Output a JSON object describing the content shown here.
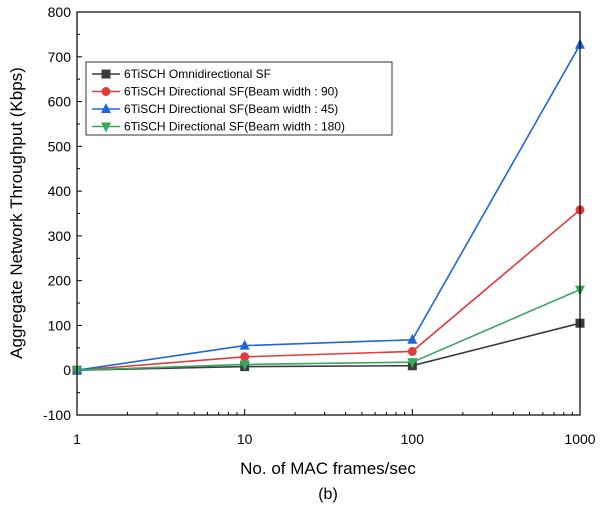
{
  "chart_data": {
    "type": "line",
    "title": "",
    "xlabel": "No. of MAC frames/sec",
    "ylabel": "Aggregate Network Throughput (Kbps)",
    "caption": "(b)",
    "x_scale": "log",
    "x": [
      1,
      10,
      100,
      1000
    ],
    "x_tick_labels": [
      "1",
      "10",
      "100",
      "1000"
    ],
    "ylim": [
      -100,
      800
    ],
    "y_ticks": [
      -100,
      0,
      100,
      200,
      300,
      400,
      500,
      600,
      700,
      800
    ],
    "y_tick_labels": [
      "-100",
      "0",
      "100",
      "200",
      "300",
      "400",
      "500",
      "600",
      "700",
      "800"
    ],
    "legend_position": "top-left",
    "series": [
      {
        "name": "6TiSCH Omnidirectional SF",
        "values": [
          0,
          8,
          10,
          105
        ],
        "color": "#3b3b3b",
        "marker": "square"
      },
      {
        "name": "6TiSCH Directional SF(Beam width : 90)",
        "values": [
          0,
          30,
          42,
          358
        ],
        "color": "#e03c3c",
        "marker": "circle"
      },
      {
        "name": "6TiSCH Directional SF(Beam width : 45)",
        "values": [
          0,
          55,
          68,
          727
        ],
        "color": "#2166d6",
        "marker": "triangle-up"
      },
      {
        "name": "6TiSCH Directional SF(Beam width : 180)",
        "values": [
          0,
          13,
          18,
          180
        ],
        "color": "#38a85f",
        "marker": "triangle-down"
      }
    ]
  }
}
